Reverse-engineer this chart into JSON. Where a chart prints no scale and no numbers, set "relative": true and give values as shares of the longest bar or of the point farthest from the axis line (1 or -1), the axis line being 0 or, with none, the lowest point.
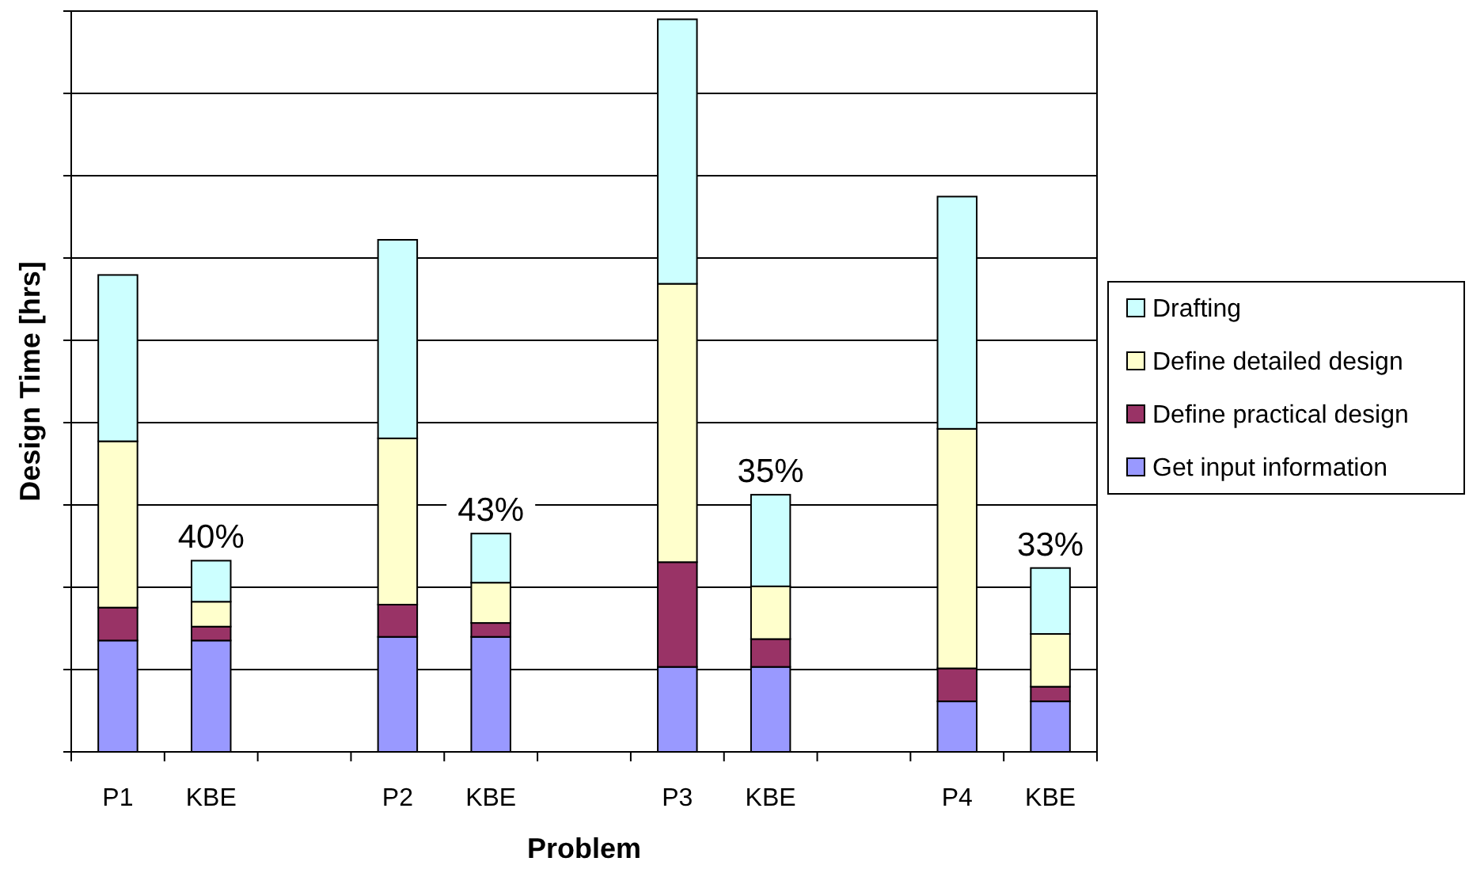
{
  "chart_data": {
    "type": "bar",
    "stacked": true,
    "relative": true,
    "xlabel": "Problem",
    "ylabel": "Design Time [hrs]",
    "categories": [
      "P1",
      "KBE",
      null,
      "P2",
      "KBE",
      null,
      "P3",
      "KBE",
      null,
      "P4",
      "KBE"
    ],
    "series": [
      {
        "name": "Get input information",
        "color": "#9999ff",
        "values": [
          0.152,
          0.152,
          null,
          0.157,
          0.157,
          null,
          0.116,
          0.116,
          null,
          0.069,
          0.069
        ]
      },
      {
        "name": "Define practical design",
        "color": "#993366",
        "values": [
          0.045,
          0.019,
          null,
          0.044,
          0.019,
          null,
          0.143,
          0.038,
          null,
          0.045,
          0.02
        ]
      },
      {
        "name": "Define detailed design",
        "color": "#ffffcc",
        "values": [
          0.227,
          0.034,
          null,
          0.227,
          0.055,
          null,
          0.38,
          0.072,
          null,
          0.327,
          0.072
        ]
      },
      {
        "name": "Drafting",
        "color": "#ccffff",
        "values": [
          0.227,
          0.056,
          null,
          0.271,
          0.067,
          null,
          0.361,
          0.125,
          null,
          0.317,
          0.09
        ]
      }
    ],
    "annotations": [
      "40%",
      "43%",
      "35%",
      "33%"
    ],
    "grid": "y",
    "legend": "right"
  }
}
